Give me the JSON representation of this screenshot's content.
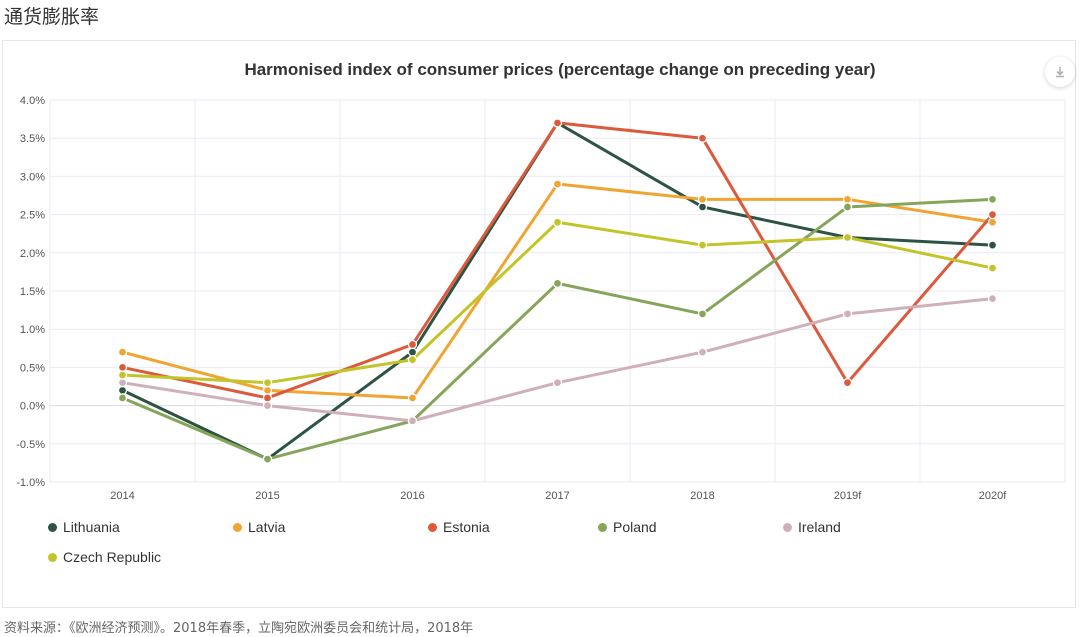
{
  "page": {
    "title": "通货膨胀率",
    "source": "资料来源：《欧洲经济预测》。2018年春季，立陶宛欧洲委员会和统计局，2018年"
  },
  "download_icon": "download-icon",
  "chart_data": {
    "type": "line",
    "title": "Harmonised index of consumer prices (percentage change on preceding year)",
    "xlabel": "",
    "ylabel": "",
    "categories": [
      "2014",
      "2015",
      "2016",
      "2017",
      "2018",
      "2019f",
      "2020f"
    ],
    "ylim": [
      -1.0,
      4.0
    ],
    "yticks": [
      "4.0%",
      "3.5%",
      "3.0%",
      "2.5%",
      "2.0%",
      "1.5%",
      "1.0%",
      "0.5%",
      "0.0%",
      "-0.5%",
      "-1.0%"
    ],
    "ytick_values": [
      4.0,
      3.5,
      3.0,
      2.5,
      2.0,
      1.5,
      1.0,
      0.5,
      0.0,
      -0.5,
      -1.0
    ],
    "grid": true,
    "legend_position": "bottom-left",
    "series": [
      {
        "name": "Lithuania",
        "color": "#2d5443",
        "values": [
          0.2,
          -0.7,
          0.7,
          3.7,
          2.6,
          2.2,
          2.1
        ]
      },
      {
        "name": "Latvia",
        "color": "#f0a431",
        "values": [
          0.7,
          0.2,
          0.1,
          2.9,
          2.7,
          2.7,
          2.4
        ]
      },
      {
        "name": "Estonia",
        "color": "#dc5a3c",
        "values": [
          0.5,
          0.1,
          0.8,
          3.7,
          3.5,
          0.3,
          2.5
        ]
      },
      {
        "name": "Poland",
        "color": "#86a55a",
        "values": [
          0.1,
          -0.7,
          -0.2,
          1.6,
          1.2,
          2.6,
          2.7
        ]
      },
      {
        "name": "Ireland",
        "color": "#cfb0b8",
        "values": [
          0.3,
          0.0,
          -0.2,
          0.3,
          0.7,
          1.2,
          1.4
        ]
      },
      {
        "name": "Czech Republic",
        "color": "#c3c42a",
        "values": [
          0.4,
          0.3,
          0.6,
          2.4,
          2.1,
          2.2,
          1.8
        ]
      }
    ]
  }
}
